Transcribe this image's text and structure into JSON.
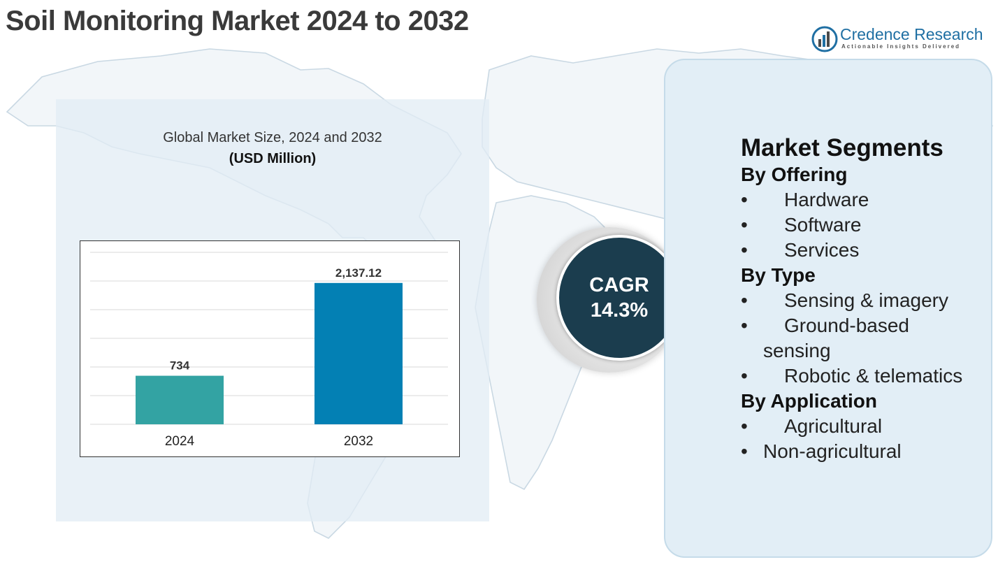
{
  "title": "Soil Monitoring Market 2024 to 2032",
  "logo": {
    "name": "Credence Research",
    "tagline": "Actionable Insights Delivered",
    "icon": "bar-chart-logo-icon"
  },
  "chart_data": {
    "type": "bar",
    "title": "Global Market Size, 2024 and 2032",
    "subtitle": "(USD Million)",
    "categories": [
      "2024",
      "2032"
    ],
    "values": [
      734,
      2137.12
    ],
    "value_labels": [
      "734",
      "2,137.12"
    ],
    "colors": [
      "#33a3a3",
      "#0380b4"
    ],
    "ylim": [
      0,
      2600
    ],
    "grid": true,
    "xlabel": "",
    "ylabel": ""
  },
  "cagr": {
    "label": "CAGR",
    "value": "14.3%"
  },
  "segments": {
    "title": "Market Segments",
    "groups": [
      {
        "heading": "By Offering",
        "items": [
          "Hardware",
          "Software",
          "Services"
        ]
      },
      {
        "heading": "By Type",
        "items": [
          "Sensing & imagery",
          "Ground-based sensing",
          "Robotic & telematics"
        ]
      },
      {
        "heading": "By Application",
        "items": [
          "Agricultural",
          "Non-agricultural"
        ]
      }
    ]
  },
  "colors": {
    "panel": "#e2eef6",
    "cagr_circle": "#1b3d4e",
    "title_text": "#3a3a3a"
  }
}
